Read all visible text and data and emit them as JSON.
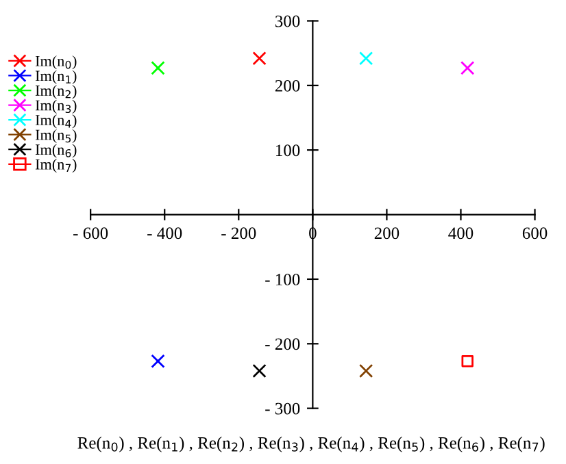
{
  "chart_data": {
    "type": "scatter",
    "xlabel": "Re(n$_{0}$) , Re(n$_{1}$) , Re(n$_{2}$) , Re(n$_{3}$) , Re(n$_{4}$) , Re(n$_{5}$) , Re(n$_{6}$) , Re(n$_{7}$)",
    "series": [
      {
        "name": "Im(n$_{0}$)",
        "color": "#ff0000",
        "marker": "cross",
        "x": [
          -144
        ],
        "values": [
          242
        ]
      },
      {
        "name": "Im(n$_{1}$)",
        "color": "#0000ff",
        "marker": "cross",
        "x": [
          -418
        ],
        "values": [
          -227
        ]
      },
      {
        "name": "Im(n$_{2}$)",
        "color": "#00ff00",
        "marker": "cross",
        "x": [
          -418
        ],
        "values": [
          227
        ]
      },
      {
        "name": "Im(n$_{3}$)",
        "color": "#ff00ff",
        "marker": "cross",
        "x": [
          418
        ],
        "values": [
          227
        ]
      },
      {
        "name": "Im(n$_{4}$)",
        "color": "#00ffff",
        "marker": "cross",
        "x": [
          144
        ],
        "values": [
          242
        ]
      },
      {
        "name": "Im(n$_{5}$)",
        "color": "#804000",
        "marker": "cross",
        "x": [
          144
        ],
        "values": [
          -242
        ]
      },
      {
        "name": "Im(n$_{6}$)",
        "color": "#000000",
        "marker": "cross",
        "x": [
          -144
        ],
        "values": [
          -242
        ]
      },
      {
        "name": "Im(n$_{7}$)",
        "color": "#ff0000",
        "marker": "square",
        "x": [
          418
        ],
        "values": [
          -227
        ]
      }
    ],
    "xlim": [
      -600,
      600
    ],
    "xticks": [
      {
        "value": -600,
        "label": "- 600"
      },
      {
        "value": -400,
        "label": "- 400"
      },
      {
        "value": -200,
        "label": "- 200"
      },
      0,
      200,
      400,
      600
    ],
    "ylim": [
      -300,
      300
    ],
    "yticks": [
      {
        "value": -300,
        "label": "- 300"
      },
      {
        "value": -200,
        "label": "- 200"
      },
      {
        "value": -100,
        "label": "- 100"
      },
      100,
      200,
      300
    ],
    "grid": false,
    "legend": "left"
  }
}
